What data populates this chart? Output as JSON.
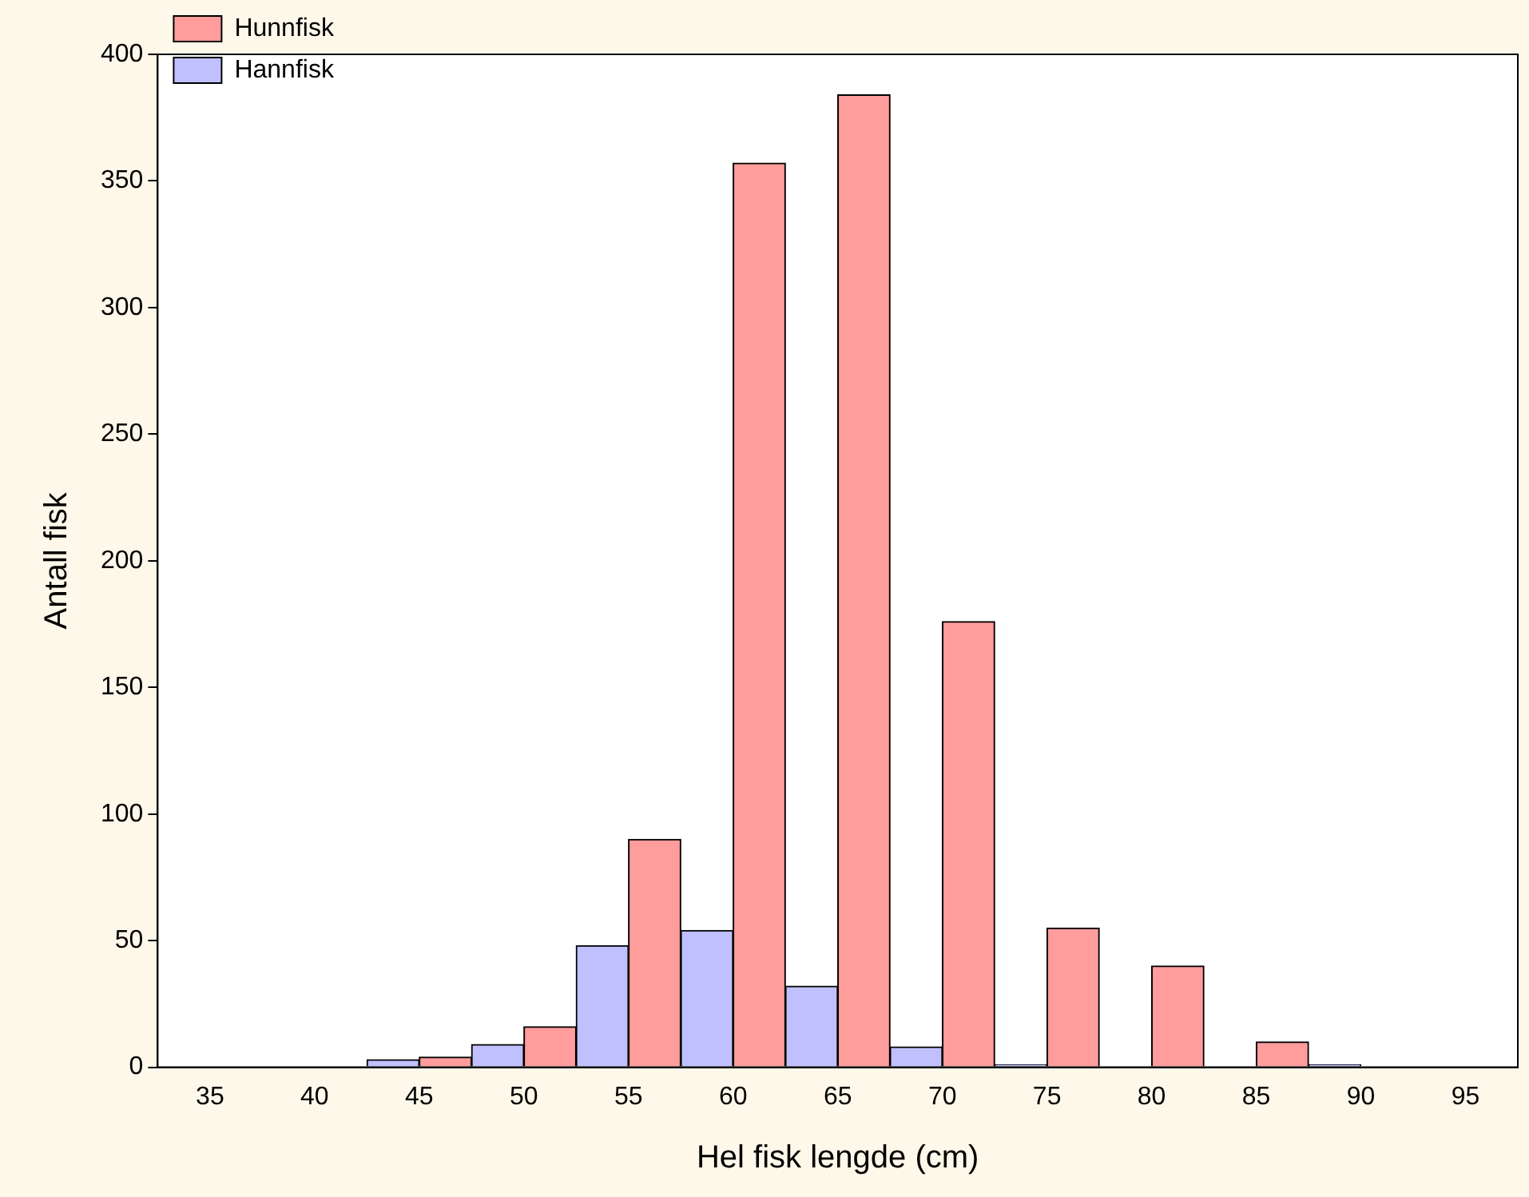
{
  "chart_data": {
    "type": "bar",
    "xlabel": "Hel fisk lengde (cm)",
    "ylabel": "Antall fisk",
    "categories": [
      "35",
      "40",
      "45",
      "50",
      "55",
      "60",
      "65",
      "70",
      "75",
      "80",
      "85",
      "90",
      "95"
    ],
    "series": [
      {
        "name": "Hannfisk",
        "color": "#c0c0ff",
        "values": [
          0,
          0,
          3,
          9,
          48,
          54,
          32,
          8,
          1,
          0,
          0,
          1,
          0
        ]
      },
      {
        "name": "Hunnfisk",
        "color": "#ff9c9c",
        "values": [
          0,
          0,
          4,
          16,
          90,
          357,
          384,
          176,
          55,
          40,
          10,
          0,
          0
        ]
      }
    ],
    "ylim": [
      0,
      400
    ],
    "yticks": [
      0,
      50,
      100,
      150,
      200,
      250,
      300,
      350,
      400
    ],
    "grid": false,
    "legend": "top left"
  }
}
